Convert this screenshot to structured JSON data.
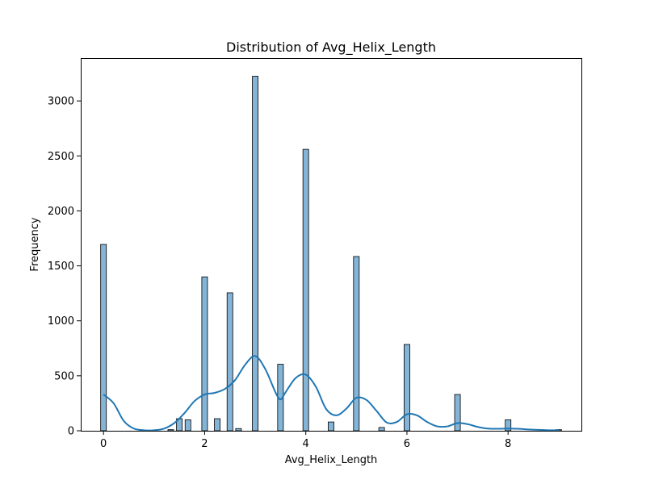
{
  "chart_data": {
    "type": "bar",
    "title": "Distribution of Avg_Helix_Length",
    "xlabel": "Avg_Helix_Length",
    "ylabel": "Frequency",
    "xlim": [
      -0.45,
      9.45
    ],
    "ylim": [
      0,
      3390
    ],
    "xticks": [
      0,
      2,
      4,
      6,
      8
    ],
    "yticks": [
      0,
      500,
      1000,
      1500,
      2000,
      2500,
      3000
    ],
    "bin_width": 0.1125,
    "bar_color": "#1f77b4",
    "kde_color": "#1f77b4",
    "bins": [
      {
        "x": 0.0,
        "count": 1695
      },
      {
        "x": 1.33,
        "count": 10
      },
      {
        "x": 1.5,
        "count": 110
      },
      {
        "x": 1.67,
        "count": 100
      },
      {
        "x": 2.0,
        "count": 1400
      },
      {
        "x": 2.25,
        "count": 110
      },
      {
        "x": 2.5,
        "count": 1255
      },
      {
        "x": 2.67,
        "count": 20
      },
      {
        "x": 3.0,
        "count": 3225
      },
      {
        "x": 3.5,
        "count": 605
      },
      {
        "x": 4.0,
        "count": 2560
      },
      {
        "x": 4.5,
        "count": 80
      },
      {
        "x": 5.0,
        "count": 1585
      },
      {
        "x": 5.5,
        "count": 30
      },
      {
        "x": 6.0,
        "count": 785
      },
      {
        "x": 7.0,
        "count": 330
      },
      {
        "x": 8.0,
        "count": 100
      },
      {
        "x": 9.0,
        "count": 10
      }
    ],
    "kde": {
      "x": [
        0.0,
        0.2,
        0.4,
        0.6,
        0.8,
        1.0,
        1.2,
        1.4,
        1.6,
        1.8,
        2.0,
        2.2,
        2.4,
        2.6,
        2.8,
        3.0,
        3.2,
        3.4,
        3.5,
        3.6,
        3.8,
        4.0,
        4.2,
        4.4,
        4.6,
        4.8,
        5.0,
        5.2,
        5.4,
        5.6,
        5.8,
        6.0,
        6.2,
        6.4,
        6.6,
        6.8,
        7.0,
        7.2,
        7.4,
        7.6,
        7.8,
        8.0,
        8.2,
        8.4,
        8.6,
        8.8,
        9.0
      ],
      "y": [
        330,
        250,
        90,
        20,
        5,
        5,
        20,
        70,
        160,
        270,
        330,
        345,
        380,
        460,
        600,
        680,
        560,
        350,
        285,
        350,
        480,
        510,
        400,
        200,
        140,
        200,
        300,
        280,
        180,
        75,
        80,
        150,
        140,
        80,
        40,
        40,
        70,
        60,
        35,
        20,
        18,
        20,
        18,
        12,
        8,
        5,
        4
      ]
    }
  }
}
